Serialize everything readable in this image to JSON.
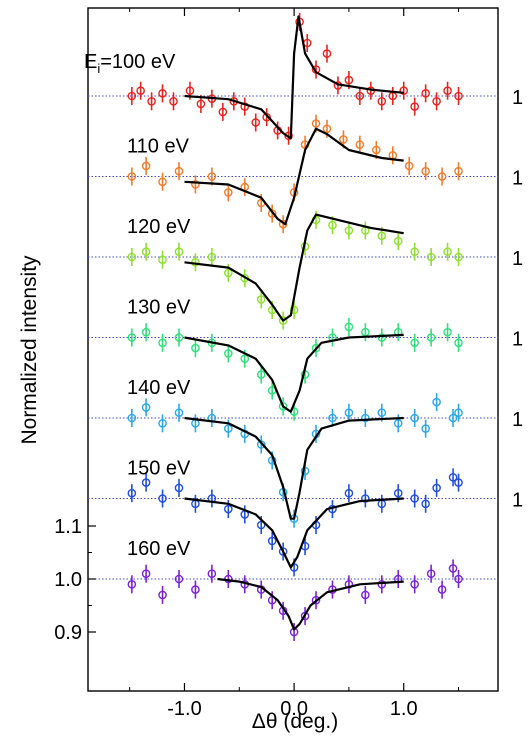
{
  "chart_data": {
    "type": "scatter",
    "xlabel": "Δθ (deg.)",
    "ylabel": "Normalized intensity",
    "xlim": [
      -1.88,
      1.86
    ],
    "x_ticks": [
      "-1.0",
      "0.0",
      "1.0"
    ],
    "x_tick_values": [
      -1.0,
      0.0,
      1.0
    ],
    "y_ticks": [
      "1.1",
      "1.0",
      "0.9"
    ],
    "y_tick_values": [
      1.1,
      1.0,
      0.9
    ],
    "stacked_baseline_labels": [
      "1",
      "1",
      "1",
      "1",
      "1",
      "1"
    ],
    "y_range_bottom_panel": [
      0.855,
      1.13
    ],
    "series": [
      {
        "name": "Ei=100 eV",
        "label_main": "E",
        "label_sub": "i",
        "label_rest": "=100 eV",
        "color": "#e8231c",
        "offset": 6,
        "fit": [
          [
            -1.0,
            1.0
          ],
          [
            -0.6,
            0.994
          ],
          [
            -0.3,
            0.975
          ],
          [
            -0.1,
            0.93
          ],
          [
            -0.03,
            0.92
          ],
          [
            0.0,
            1.08
          ],
          [
            0.04,
            1.15
          ],
          [
            0.1,
            1.08
          ],
          [
            0.2,
            1.045
          ],
          [
            0.4,
            1.022
          ],
          [
            0.7,
            1.012
          ],
          [
            1.0,
            1.006
          ]
        ],
        "points": [
          [
            -1.48,
            1.0
          ],
          [
            -1.4,
            1.01
          ],
          [
            -1.3,
            0.99
          ],
          [
            -1.2,
            1.005
          ],
          [
            -1.1,
            0.99
          ],
          [
            -0.95,
            1.01
          ],
          [
            -0.85,
            0.985
          ],
          [
            -0.75,
            0.995
          ],
          [
            -0.65,
            0.97
          ],
          [
            -0.55,
            0.99
          ],
          [
            -0.45,
            0.98
          ],
          [
            -0.35,
            0.95
          ],
          [
            -0.25,
            0.96
          ],
          [
            -0.15,
            0.935
          ],
          [
            -0.05,
            0.925
          ],
          [
            0.05,
            1.14
          ],
          [
            0.12,
            1.1
          ],
          [
            0.2,
            1.05
          ],
          [
            0.3,
            1.08
          ],
          [
            0.4,
            1.02
          ],
          [
            0.5,
            1.03
          ],
          [
            0.6,
            1.0
          ],
          [
            0.7,
            1.01
          ],
          [
            0.8,
            0.99
          ],
          [
            0.9,
            1.0
          ],
          [
            1.0,
            1.01
          ],
          [
            1.1,
            0.98
          ],
          [
            1.2,
            1.005
          ],
          [
            1.3,
            0.99
          ],
          [
            1.4,
            1.01
          ],
          [
            1.5,
            1.0
          ]
        ]
      },
      {
        "name": "110 eV",
        "label": "110 eV",
        "color": "#f07b2a",
        "offset": 5,
        "fit": [
          [
            -1.0,
            0.99
          ],
          [
            -0.6,
            0.985
          ],
          [
            -0.3,
            0.96
          ],
          [
            -0.15,
            0.92
          ],
          [
            -0.08,
            0.91
          ],
          [
            0.0,
            0.96
          ],
          [
            0.1,
            1.05
          ],
          [
            0.2,
            1.09
          ],
          [
            0.3,
            1.08
          ],
          [
            0.5,
            1.05
          ],
          [
            0.8,
            1.035
          ],
          [
            1.0,
            1.03
          ]
        ],
        "points": [
          [
            -1.48,
            1.0
          ],
          [
            -1.35,
            1.02
          ],
          [
            -1.2,
            0.99
          ],
          [
            -1.05,
            1.01
          ],
          [
            -0.9,
            0.985
          ],
          [
            -0.75,
            1.0
          ],
          [
            -0.6,
            0.97
          ],
          [
            -0.45,
            0.98
          ],
          [
            -0.3,
            0.95
          ],
          [
            -0.2,
            0.93
          ],
          [
            -0.1,
            0.91
          ],
          [
            0.0,
            0.97
          ],
          [
            0.1,
            1.06
          ],
          [
            0.2,
            1.1
          ],
          [
            0.3,
            1.09
          ],
          [
            0.45,
            1.07
          ],
          [
            0.6,
            1.06
          ],
          [
            0.75,
            1.05
          ],
          [
            0.9,
            1.04
          ],
          [
            1.05,
            1.02
          ],
          [
            1.2,
            1.01
          ],
          [
            1.35,
            1.0
          ],
          [
            1.5,
            1.01
          ]
        ]
      },
      {
        "name": "120 eV",
        "label": "120 eV",
        "color": "#8ee02e",
        "offset": 4,
        "fit": [
          [
            -1.0,
            0.99
          ],
          [
            -0.6,
            0.98
          ],
          [
            -0.35,
            0.95
          ],
          [
            -0.2,
            0.91
          ],
          [
            -0.1,
            0.88
          ],
          [
            -0.03,
            0.89
          ],
          [
            0.05,
            0.98
          ],
          [
            0.12,
            1.05
          ],
          [
            0.2,
            1.08
          ],
          [
            0.4,
            1.07
          ],
          [
            0.7,
            1.055
          ],
          [
            1.0,
            1.045
          ]
        ],
        "points": [
          [
            -1.48,
            1.0
          ],
          [
            -1.35,
            1.01
          ],
          [
            -1.2,
            0.995
          ],
          [
            -1.05,
            1.01
          ],
          [
            -0.9,
            0.99
          ],
          [
            -0.75,
            1.0
          ],
          [
            -0.6,
            0.97
          ],
          [
            -0.45,
            0.96
          ],
          [
            -0.3,
            0.92
          ],
          [
            -0.2,
            0.9
          ],
          [
            -0.1,
            0.88
          ],
          [
            0.0,
            0.9
          ],
          [
            0.1,
            1.02
          ],
          [
            0.2,
            1.07
          ],
          [
            0.35,
            1.06
          ],
          [
            0.5,
            1.05
          ],
          [
            0.65,
            1.05
          ],
          [
            0.8,
            1.04
          ],
          [
            0.95,
            1.03
          ],
          [
            1.1,
            1.01
          ],
          [
            1.25,
            1.0
          ],
          [
            1.4,
            1.01
          ],
          [
            1.5,
            1.0
          ]
        ]
      },
      {
        "name": "130 eV",
        "label": "130 eV",
        "color": "#2ee07a",
        "offset": 3,
        "fit": [
          [
            -1.0,
            1.0
          ],
          [
            -0.6,
            0.985
          ],
          [
            -0.35,
            0.96
          ],
          [
            -0.2,
            0.92
          ],
          [
            -0.1,
            0.87
          ],
          [
            -0.03,
            0.86
          ],
          [
            0.05,
            0.9
          ],
          [
            0.12,
            0.96
          ],
          [
            0.25,
            0.99
          ],
          [
            0.5,
            1.0
          ],
          [
            1.0,
            1.005
          ]
        ],
        "points": [
          [
            -1.48,
            1.0
          ],
          [
            -1.35,
            1.01
          ],
          [
            -1.2,
            0.99
          ],
          [
            -1.05,
            1.0
          ],
          [
            -0.9,
            0.98
          ],
          [
            -0.75,
            0.99
          ],
          [
            -0.6,
            0.97
          ],
          [
            -0.45,
            0.96
          ],
          [
            -0.3,
            0.93
          ],
          [
            -0.2,
            0.9
          ],
          [
            -0.1,
            0.87
          ],
          [
            0.0,
            0.86
          ],
          [
            0.1,
            0.93
          ],
          [
            0.2,
            0.98
          ],
          [
            0.35,
            1.0
          ],
          [
            0.5,
            1.02
          ],
          [
            0.65,
            1.01
          ],
          [
            0.8,
            1.0
          ],
          [
            0.95,
            1.01
          ],
          [
            1.1,
            0.99
          ],
          [
            1.25,
            1.0
          ],
          [
            1.4,
            1.01
          ],
          [
            1.5,
            0.99
          ]
        ]
      },
      {
        "name": "140 eV",
        "label": "140 eV",
        "color": "#2aa8e8",
        "offset": 2,
        "fit": [
          [
            -1.0,
            1.0
          ],
          [
            -0.6,
            0.99
          ],
          [
            -0.35,
            0.965
          ],
          [
            -0.2,
            0.93
          ],
          [
            -0.1,
            0.87
          ],
          [
            -0.03,
            0.81
          ],
          [
            0.0,
            0.81
          ],
          [
            0.05,
            0.86
          ],
          [
            0.12,
            0.94
          ],
          [
            0.25,
            0.98
          ],
          [
            0.5,
            0.995
          ],
          [
            1.0,
            1.0
          ]
        ],
        "points": [
          [
            -1.48,
            1.0
          ],
          [
            -1.35,
            1.02
          ],
          [
            -1.2,
            0.99
          ],
          [
            -1.05,
            1.01
          ],
          [
            -0.9,
            0.99
          ],
          [
            -0.75,
            1.0
          ],
          [
            -0.6,
            0.98
          ],
          [
            -0.45,
            0.97
          ],
          [
            -0.3,
            0.95
          ],
          [
            -0.2,
            0.92
          ],
          [
            -0.1,
            0.86
          ],
          [
            0.0,
            0.81
          ],
          [
            0.1,
            0.9
          ],
          [
            0.2,
            0.97
          ],
          [
            0.35,
            1.0
          ],
          [
            0.5,
            1.01
          ],
          [
            0.65,
            1.0
          ],
          [
            0.8,
            1.01
          ],
          [
            0.95,
            0.99
          ],
          [
            1.1,
            1.0
          ],
          [
            1.2,
            0.98
          ],
          [
            1.3,
            1.03
          ],
          [
            1.45,
            1.0
          ],
          [
            1.5,
            1.01
          ]
        ]
      },
      {
        "name": "150 eV",
        "label": "150 eV",
        "color": "#1f4fdc",
        "offset": 1,
        "fit": [
          [
            -1.0,
            1.0
          ],
          [
            -0.6,
            0.99
          ],
          [
            -0.35,
            0.97
          ],
          [
            -0.2,
            0.94
          ],
          [
            -0.1,
            0.9
          ],
          [
            -0.03,
            0.87
          ],
          [
            0.03,
            0.89
          ],
          [
            0.12,
            0.94
          ],
          [
            0.3,
            0.98
          ],
          [
            0.6,
            0.995
          ],
          [
            1.0,
            1.0
          ]
        ],
        "points": [
          [
            -1.48,
            1.01
          ],
          [
            -1.35,
            1.03
          ],
          [
            -1.2,
            1.0
          ],
          [
            -1.05,
            1.02
          ],
          [
            -0.9,
            0.99
          ],
          [
            -0.75,
            1.0
          ],
          [
            -0.6,
            0.98
          ],
          [
            -0.45,
            0.97
          ],
          [
            -0.3,
            0.95
          ],
          [
            -0.2,
            0.92
          ],
          [
            -0.1,
            0.9
          ],
          [
            0.0,
            0.87
          ],
          [
            0.1,
            0.91
          ],
          [
            0.2,
            0.95
          ],
          [
            0.35,
            0.98
          ],
          [
            0.5,
            1.01
          ],
          [
            0.65,
            1.0
          ],
          [
            0.8,
            0.99
          ],
          [
            0.95,
            1.01
          ],
          [
            1.1,
            1.0
          ],
          [
            1.2,
            0.99
          ],
          [
            1.3,
            1.02
          ],
          [
            1.45,
            1.04
          ],
          [
            1.5,
            1.03
          ]
        ]
      },
      {
        "name": "160 eV",
        "label": "160 eV",
        "color": "#7a22d6",
        "offset": 0,
        "fit": [
          [
            -0.7,
            1.0
          ],
          [
            -0.5,
            0.995
          ],
          [
            -0.3,
            0.985
          ],
          [
            -0.15,
            0.96
          ],
          [
            -0.05,
            0.93
          ],
          [
            0.0,
            0.905
          ],
          [
            0.05,
            0.915
          ],
          [
            0.15,
            0.95
          ],
          [
            0.3,
            0.975
          ],
          [
            0.6,
            0.99
          ],
          [
            1.0,
            0.995
          ]
        ],
        "points": [
          [
            -1.48,
            0.99
          ],
          [
            -1.35,
            1.01
          ],
          [
            -1.2,
            0.97
          ],
          [
            -1.05,
            1.0
          ],
          [
            -0.9,
            0.98
          ],
          [
            -0.75,
            1.01
          ],
          [
            -0.6,
            1.0
          ],
          [
            -0.45,
            0.99
          ],
          [
            -0.3,
            0.98
          ],
          [
            -0.2,
            0.96
          ],
          [
            -0.1,
            0.94
          ],
          [
            0.0,
            0.9
          ],
          [
            0.1,
            0.93
          ],
          [
            0.2,
            0.96
          ],
          [
            0.35,
            0.98
          ],
          [
            0.5,
            0.99
          ],
          [
            0.65,
            0.97
          ],
          [
            0.8,
            0.99
          ],
          [
            0.95,
            1.0
          ],
          [
            1.1,
            0.99
          ],
          [
            1.25,
            1.01
          ],
          [
            1.35,
            0.98
          ],
          [
            1.45,
            1.02
          ],
          [
            1.5,
            1.0
          ]
        ]
      }
    ]
  }
}
